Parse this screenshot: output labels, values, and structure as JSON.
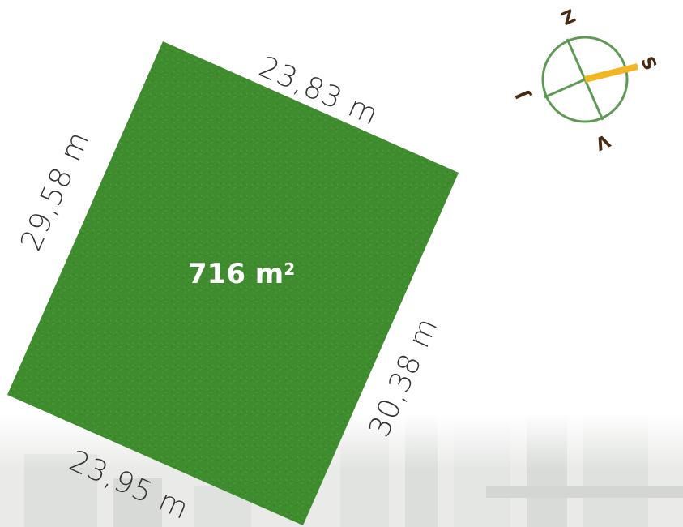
{
  "plot": {
    "area_value": "716 m",
    "area_unit_sup": "2",
    "color": "#3e8c2e"
  },
  "dimensions": {
    "top": "23,83 m",
    "left": "29,58 m",
    "right": "30,38 m",
    "bottom": "23,95 m"
  },
  "compass": {
    "north": "Z",
    "south": "J",
    "east": "S",
    "west": "V",
    "needle_color": "#f2b623",
    "ring_color": "#5f9a55"
  }
}
